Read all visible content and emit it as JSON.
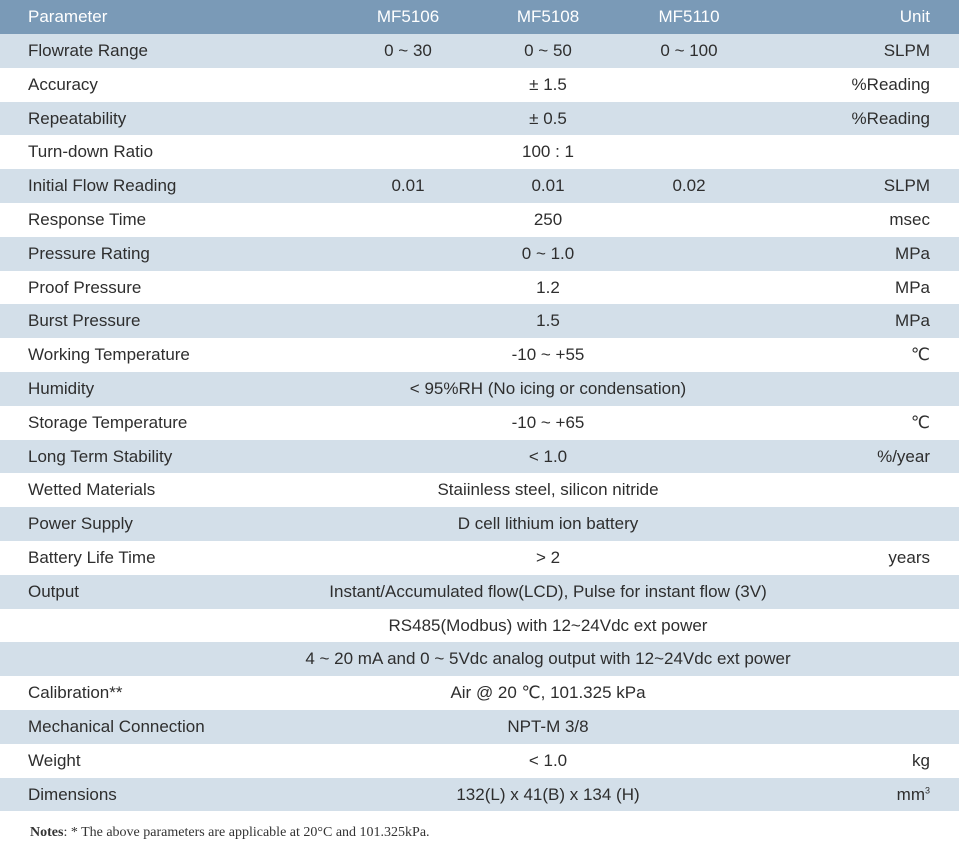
{
  "header": {
    "parameter": "Parameter",
    "model1": "MF5106",
    "model2": "MF5108",
    "model3": "MF5110",
    "unit": "Unit"
  },
  "rows": [
    {
      "parameter": "Flowrate Range",
      "m1": "0 ~ 30",
      "m2": "0 ~ 50",
      "m3": "0 ~ 100",
      "unit": "SLPM"
    },
    {
      "parameter": "Accuracy",
      "value": "± 1.5",
      "unit": "%Reading"
    },
    {
      "parameter": "Repeatability",
      "value": "± 0.5",
      "unit": "%Reading"
    },
    {
      "parameter": "Turn-down Ratio",
      "value": "100 : 1",
      "unit": ""
    },
    {
      "parameter": "Initial Flow Reading",
      "m1": "0.01",
      "m2": "0.01",
      "m3": "0.02",
      "unit": "SLPM"
    },
    {
      "parameter": "Response Time",
      "value": "250",
      "unit": "msec"
    },
    {
      "parameter": "Pressure Rating",
      "value": "0 ~ 1.0",
      "unit": "MPa"
    },
    {
      "parameter": "Proof Pressure",
      "value": "1.2",
      "unit": "MPa"
    },
    {
      "parameter": "Burst Pressure",
      "value": "1.5",
      "unit": "MPa"
    },
    {
      "parameter": "Working Temperature",
      "value": "-10 ~ +55",
      "unit": "℃"
    },
    {
      "parameter": "Humidity",
      "value": "< 95%RH (No icing or condensation)",
      "unit": ""
    },
    {
      "parameter": "Storage Temperature",
      "value": "-10 ~ +65",
      "unit": "℃"
    },
    {
      "parameter": "Long Term Stability",
      "value": "< 1.0",
      "unit": "%/year"
    },
    {
      "parameter": "Wetted Materials",
      "value": "Staiinless steel, silicon nitride",
      "unit": ""
    },
    {
      "parameter": "Power Supply",
      "value": "D cell lithium ion battery",
      "unit": ""
    },
    {
      "parameter": "Battery Life Time",
      "value": "> 2",
      "unit": "years"
    },
    {
      "parameter": "Output",
      "value": "Instant/Accumulated flow(LCD), Pulse for instant flow (3V)",
      "unit": ""
    },
    {
      "parameter": "",
      "value": "RS485(Modbus) with 12~24Vdc ext power",
      "unit": ""
    },
    {
      "parameter": "",
      "value": "4 ~ 20 mA and 0 ~ 5Vdc analog output with 12~24Vdc ext power",
      "unit": ""
    },
    {
      "parameter": "Calibration**",
      "value": "Air @ 20 ℃, 101.325 kPa",
      "unit": ""
    },
    {
      "parameter": "Mechanical Connection",
      "value": "NPT-M 3/8",
      "unit": ""
    },
    {
      "parameter": "Weight",
      "value": "<  1.0",
      "unit": "kg"
    },
    {
      "parameter": "Dimensions",
      "value": "132(L) x 41(B) x 134 (H)",
      "unit": "mm",
      "unit_sup": "3"
    }
  ],
  "notes": {
    "label": "Notes",
    "text": ": * The above parameters are applicable at 20°C and 101.325kPa."
  },
  "colors": {
    "header_bg": "#7a9ab7",
    "shaded_row": "#d3dfe9",
    "text": "#2e2e2e"
  }
}
